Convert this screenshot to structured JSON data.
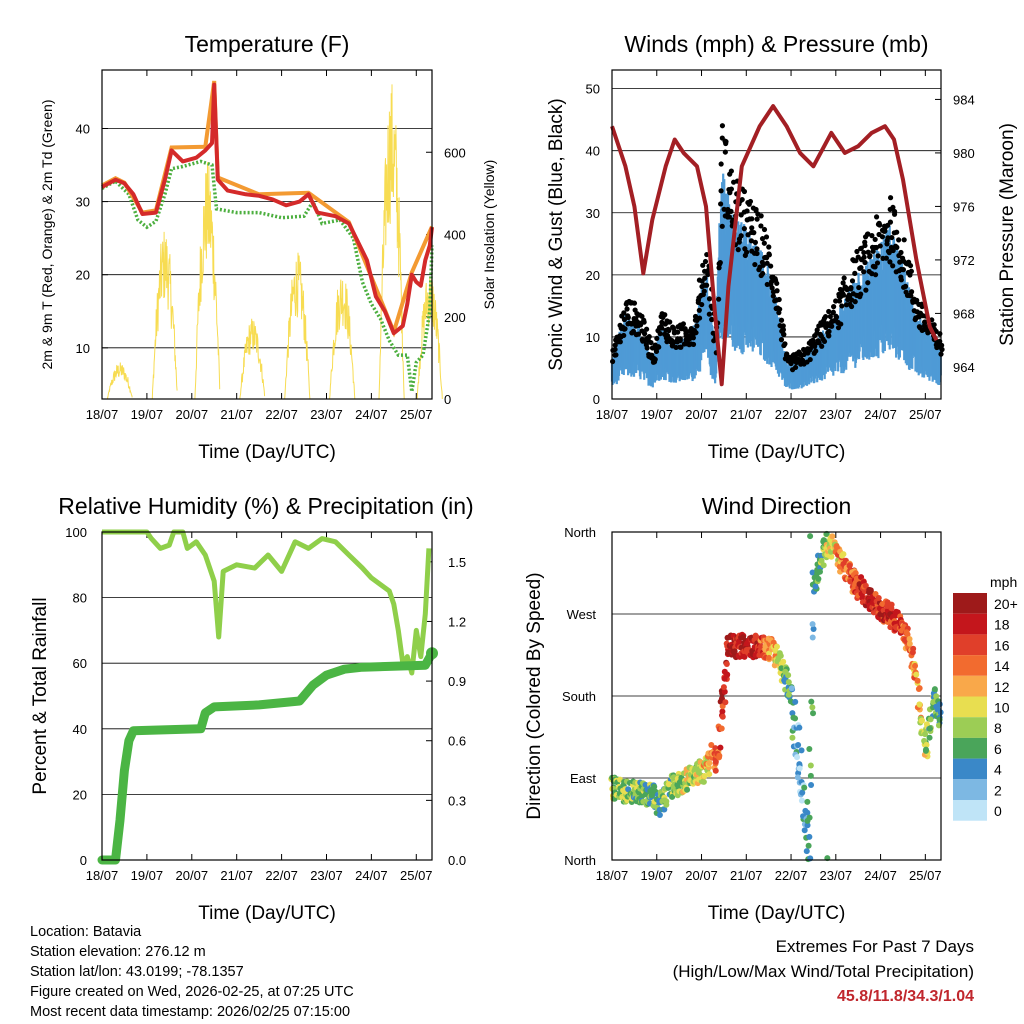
{
  "chart_data": [
    {
      "type": "line",
      "title": "Temperature (F)",
      "xlabel": "Time (Day/UTC)",
      "ylabel": "2m & 9m T (Red, Orange) & 2m Td (Green)",
      "y2label": "Solar Insolation (Yellow)",
      "x_ticks": [
        "18/07",
        "19/07",
        "20/07",
        "21/07",
        "22/07",
        "23/07",
        "24/07",
        "25/07"
      ],
      "ylim": [
        3,
        48
      ],
      "yticks": [
        10,
        20,
        30,
        40
      ],
      "y2lim": [
        0,
        800
      ],
      "y2ticks": [
        0,
        200,
        400,
        600
      ],
      "series": [
        {
          "name": "2m T",
          "color": "#d42a2a",
          "points": [
            [
              0,
              32
            ],
            [
              0.3,
              33
            ],
            [
              0.5,
              32.5
            ],
            [
              0.7,
              31
            ],
            [
              0.9,
              28.3
            ],
            [
              1.2,
              28.5
            ],
            [
              1.4,
              33
            ],
            [
              1.55,
              37
            ],
            [
              1.8,
              35.5
            ],
            [
              2.1,
              36
            ],
            [
              2.3,
              37
            ],
            [
              2.45,
              38
            ],
            [
              2.5,
              46
            ],
            [
              2.58,
              33
            ],
            [
              2.8,
              31.5
            ],
            [
              3.2,
              31
            ],
            [
              3.5,
              30.8
            ],
            [
              3.8,
              30.3
            ],
            [
              4.1,
              29.5
            ],
            [
              4.4,
              30
            ],
            [
              4.6,
              31
            ],
            [
              4.8,
              28.5
            ],
            [
              5.2,
              28
            ],
            [
              5.5,
              27
            ],
            [
              5.7,
              24.5
            ],
            [
              5.9,
              22
            ],
            [
              6.1,
              17
            ],
            [
              6.3,
              15
            ],
            [
              6.5,
              12
            ],
            [
              6.7,
              13
            ],
            [
              6.8,
              16
            ],
            [
              6.9,
              20
            ],
            [
              7.0,
              19
            ],
            [
              7.1,
              18.5
            ],
            [
              7.2,
              22
            ],
            [
              7.3,
              24
            ],
            [
              7.35,
              26.5
            ]
          ]
        },
        {
          "name": "9m T",
          "color": "#f39a32",
          "points": [
            [
              0,
              32.2
            ],
            [
              0.3,
              33.2
            ],
            [
              0.5,
              32.6
            ],
            [
              0.9,
              28.5
            ],
            [
              1.2,
              28.8
            ],
            [
              1.55,
              37.4
            ],
            [
              2.3,
              37.5
            ],
            [
              2.5,
              46.5
            ],
            [
              2.58,
              33.3
            ],
            [
              3.5,
              31
            ],
            [
              4.6,
              31.2
            ],
            [
              5.5,
              27.2
            ],
            [
              6.5,
              12.2
            ],
            [
              6.9,
              20.3
            ],
            [
              7.35,
              26.6
            ]
          ]
        },
        {
          "name": "2m Td",
          "color": "#4caf3f",
          "points": [
            [
              0,
              31.8
            ],
            [
              0.3,
              32.8
            ],
            [
              0.6,
              31
            ],
            [
              0.8,
              27.5
            ],
            [
              1.0,
              26.5
            ],
            [
              1.2,
              27.3
            ],
            [
              1.4,
              31
            ],
            [
              1.55,
              34.5
            ],
            [
              1.8,
              34.8
            ],
            [
              2.2,
              35.5
            ],
            [
              2.45,
              35
            ],
            [
              2.55,
              29
            ],
            [
              3.0,
              28.5
            ],
            [
              3.5,
              28.5
            ],
            [
              4.0,
              27.8
            ],
            [
              4.5,
              28
            ],
            [
              4.7,
              30
            ],
            [
              4.9,
              27
            ],
            [
              5.3,
              27.5
            ],
            [
              5.6,
              25
            ],
            [
              5.8,
              19
            ],
            [
              6.0,
              16
            ],
            [
              6.2,
              14
            ],
            [
              6.4,
              11
            ],
            [
              6.6,
              9
            ],
            [
              6.8,
              9
            ],
            [
              6.9,
              4
            ],
            [
              7.0,
              8
            ],
            [
              7.15,
              9
            ],
            [
              7.3,
              15
            ],
            [
              7.35,
              24
            ]
          ]
        }
      ],
      "insolation": [
        [
          0.4,
          90
        ],
        [
          1.4,
          420
        ],
        [
          2.35,
          580
        ],
        [
          3.35,
          200
        ],
        [
          4.35,
          360
        ],
        [
          5.35,
          320
        ],
        [
          6.45,
          780
        ],
        [
          7.3,
          320
        ]
      ]
    },
    {
      "type": "scatter",
      "title": "Winds (mph) & Pressure (mb)",
      "xlabel": "Time (Day/UTC)",
      "ylabel": "Sonic Wind & Gust (Blue, Black)",
      "y2label": "Station Pressure (Maroon)",
      "x_ticks": [
        "18/07",
        "19/07",
        "20/07",
        "21/07",
        "22/07",
        "23/07",
        "24/07",
        "25/07"
      ],
      "ylim": [
        0,
        53
      ],
      "yticks": [
        0,
        10,
        20,
        30,
        40,
        50
      ],
      "y2lim": [
        961.6,
        986.2
      ],
      "y2ticks": [
        964,
        968,
        972,
        976,
        980,
        984
      ],
      "wind_profile": [
        [
          0,
          5
        ],
        [
          0.3,
          10
        ],
        [
          0.6,
          9
        ],
        [
          0.9,
          5
        ],
        [
          1.1,
          9
        ],
        [
          1.4,
          7
        ],
        [
          1.8,
          8
        ],
        [
          2.1,
          16
        ],
        [
          2.3,
          6
        ],
        [
          2.45,
          28
        ],
        [
          2.55,
          25
        ],
        [
          2.7,
          22
        ],
        [
          3.0,
          20
        ],
        [
          3.3,
          18
        ],
        [
          3.6,
          14
        ],
        [
          3.9,
          4
        ],
        [
          4.3,
          5
        ],
        [
          4.7,
          8
        ],
        [
          5.0,
          10
        ],
        [
          5.4,
          14
        ],
        [
          5.8,
          17
        ],
        [
          6.2,
          20
        ],
        [
          6.5,
          16
        ],
        [
          6.8,
          10
        ],
        [
          7.1,
          8
        ],
        [
          7.35,
          6
        ]
      ],
      "pressure": [
        [
          0,
          982
        ],
        [
          0.3,
          979
        ],
        [
          0.5,
          976
        ],
        [
          0.7,
          971
        ],
        [
          0.9,
          975
        ],
        [
          1.2,
          979
        ],
        [
          1.4,
          981
        ],
        [
          1.6,
          980
        ],
        [
          1.9,
          979
        ],
        [
          2.1,
          976
        ],
        [
          2.3,
          968
        ],
        [
          2.45,
          962.7
        ],
        [
          2.6,
          970
        ],
        [
          2.9,
          979
        ],
        [
          3.3,
          982
        ],
        [
          3.6,
          983.5
        ],
        [
          3.9,
          982
        ],
        [
          4.2,
          980
        ],
        [
          4.5,
          979
        ],
        [
          4.9,
          981.5
        ],
        [
          5.2,
          980
        ],
        [
          5.5,
          980.5
        ],
        [
          5.8,
          981.5
        ],
        [
          6.1,
          982
        ],
        [
          6.3,
          981
        ],
        [
          6.5,
          978
        ],
        [
          6.8,
          972
        ],
        [
          7.1,
          967
        ],
        [
          7.25,
          966
        ]
      ]
    },
    {
      "type": "line",
      "title": "Relative Humidity (%) & Precipitation (in)",
      "xlabel": "Time (Day/UTC)",
      "ylabel": "Percent & Total Rainfall",
      "x_ticks": [
        "18/07",
        "19/07",
        "20/07",
        "21/07",
        "22/07",
        "23/07",
        "24/07",
        "25/07"
      ],
      "ylim": [
        0,
        100
      ],
      "yticks": [
        0,
        20,
        40,
        60,
        80,
        100
      ],
      "y2lim": [
        0,
        1.65
      ],
      "y2ticks": [
        "0.0",
        "0.3",
        "0.6",
        "0.9",
        "1.2",
        "1.5"
      ],
      "rh": [
        [
          0,
          100
        ],
        [
          1.0,
          100
        ],
        [
          1.1,
          98
        ],
        [
          1.3,
          95
        ],
        [
          1.5,
          96
        ],
        [
          1.6,
          100
        ],
        [
          1.8,
          100
        ],
        [
          1.9,
          95
        ],
        [
          2.1,
          97
        ],
        [
          2.3,
          93
        ],
        [
          2.5,
          85
        ],
        [
          2.6,
          68
        ],
        [
          2.7,
          88
        ],
        [
          3.0,
          90
        ],
        [
          3.4,
          89
        ],
        [
          3.7,
          93
        ],
        [
          4.0,
          88
        ],
        [
          4.3,
          97
        ],
        [
          4.6,
          95
        ],
        [
          4.9,
          98
        ],
        [
          5.2,
          97
        ],
        [
          5.5,
          93
        ],
        [
          5.8,
          89
        ],
        [
          6.0,
          86
        ],
        [
          6.2,
          84
        ],
        [
          6.4,
          82
        ],
        [
          6.5,
          78
        ],
        [
          6.6,
          70
        ],
        [
          6.7,
          60
        ],
        [
          6.8,
          62
        ],
        [
          6.9,
          57
        ],
        [
          7.0,
          70
        ],
        [
          7.1,
          62
        ],
        [
          7.2,
          75
        ],
        [
          7.28,
          95
        ]
      ],
      "precip": [
        [
          0,
          0
        ],
        [
          0.3,
          0
        ],
        [
          0.4,
          0.2
        ],
        [
          0.5,
          0.45
        ],
        [
          0.6,
          0.6
        ],
        [
          0.7,
          0.65
        ],
        [
          2.2,
          0.66
        ],
        [
          2.3,
          0.74
        ],
        [
          2.5,
          0.77
        ],
        [
          3.5,
          0.78
        ],
        [
          4.4,
          0.8
        ],
        [
          4.7,
          0.88
        ],
        [
          5.0,
          0.93
        ],
        [
          5.4,
          0.96
        ],
        [
          5.8,
          0.97
        ],
        [
          7.2,
          0.98
        ],
        [
          7.35,
          1.04
        ]
      ]
    },
    {
      "type": "scatter",
      "title": "Wind Direction",
      "xlabel": "Time (Day/UTC)",
      "ylabel": "Direction (Colored By Speed)",
      "x_ticks": [
        "18/07",
        "19/07",
        "20/07",
        "21/07",
        "22/07",
        "23/07",
        "24/07",
        "25/07"
      ],
      "ylim": [
        0,
        360
      ],
      "ytick_labels": [
        "North",
        "East",
        "South",
        "West",
        "North"
      ],
      "colorbar_title": "mph",
      "colorbar_labels": [
        "20+",
        "18",
        "16",
        "14",
        "12",
        "10",
        "8",
        "6",
        "4",
        "2",
        "0"
      ],
      "colorbar_colors": [
        "#9e1a1a",
        "#c4161c",
        "#e03f2a",
        "#f26b2f",
        "#f9a84a",
        "#e8de50",
        "#9ccd55",
        "#4aa55a",
        "#3a88c8",
        "#7db8e3",
        "#bfe4f7"
      ],
      "direction": [
        [
          0,
          80
        ],
        [
          0.3,
          75
        ],
        [
          0.6,
          75
        ],
        [
          0.9,
          70
        ],
        [
          1.1,
          60
        ],
        [
          1.3,
          80
        ],
        [
          1.6,
          85
        ],
        [
          1.9,
          95
        ],
        [
          2.1,
          100
        ],
        [
          2.2,
          115
        ],
        [
          2.35,
          110
        ],
        [
          2.6,
          235
        ],
        [
          3.0,
          235
        ],
        [
          3.3,
          235
        ],
        [
          3.6,
          230
        ],
        [
          3.8,
          210
        ],
        [
          4.0,
          180
        ],
        [
          4.1,
          140
        ],
        [
          4.2,
          100
        ],
        [
          4.3,
          60
        ],
        [
          4.4,
          20
        ],
        [
          4.5,
          300
        ],
        [
          4.6,
          320
        ],
        [
          4.8,
          350
        ],
        [
          5.0,
          340
        ],
        [
          5.2,
          320
        ],
        [
          5.5,
          300
        ],
        [
          5.8,
          285
        ],
        [
          6.0,
          275
        ],
        [
          6.2,
          270
        ],
        [
          6.4,
          260
        ],
        [
          6.6,
          240
        ],
        [
          6.8,
          200
        ],
        [
          7.0,
          120
        ],
        [
          7.2,
          180
        ],
        [
          7.3,
          160
        ]
      ],
      "speed_at": [
        [
          0,
          8
        ],
        [
          1,
          6
        ],
        [
          2,
          10
        ],
        [
          2.6,
          19
        ],
        [
          3.2,
          18
        ],
        [
          3.8,
          8
        ],
        [
          4.2,
          2
        ],
        [
          4.6,
          6
        ],
        [
          5.2,
          14
        ],
        [
          5.8,
          18
        ],
        [
          6.4,
          16
        ],
        [
          6.8,
          12
        ],
        [
          7.2,
          6
        ]
      ]
    }
  ],
  "footer": {
    "location": "Location: Batavia",
    "elevation": "Station elevation: 276.12 m",
    "latlon": "Station lat/lon: 43.0199; -78.1357",
    "created": "Figure created on Wed, 2026-02-25, at 07:25 UTC",
    "recent": "Most recent data timestamp: 2026/02/25 07:15:00"
  },
  "extremes": {
    "title": "Extremes For Past 7 Days",
    "subtitle": "(High/Low/Max Wind/Total Precipitation)",
    "values": "45.8/11.8/34.3/1.04"
  }
}
